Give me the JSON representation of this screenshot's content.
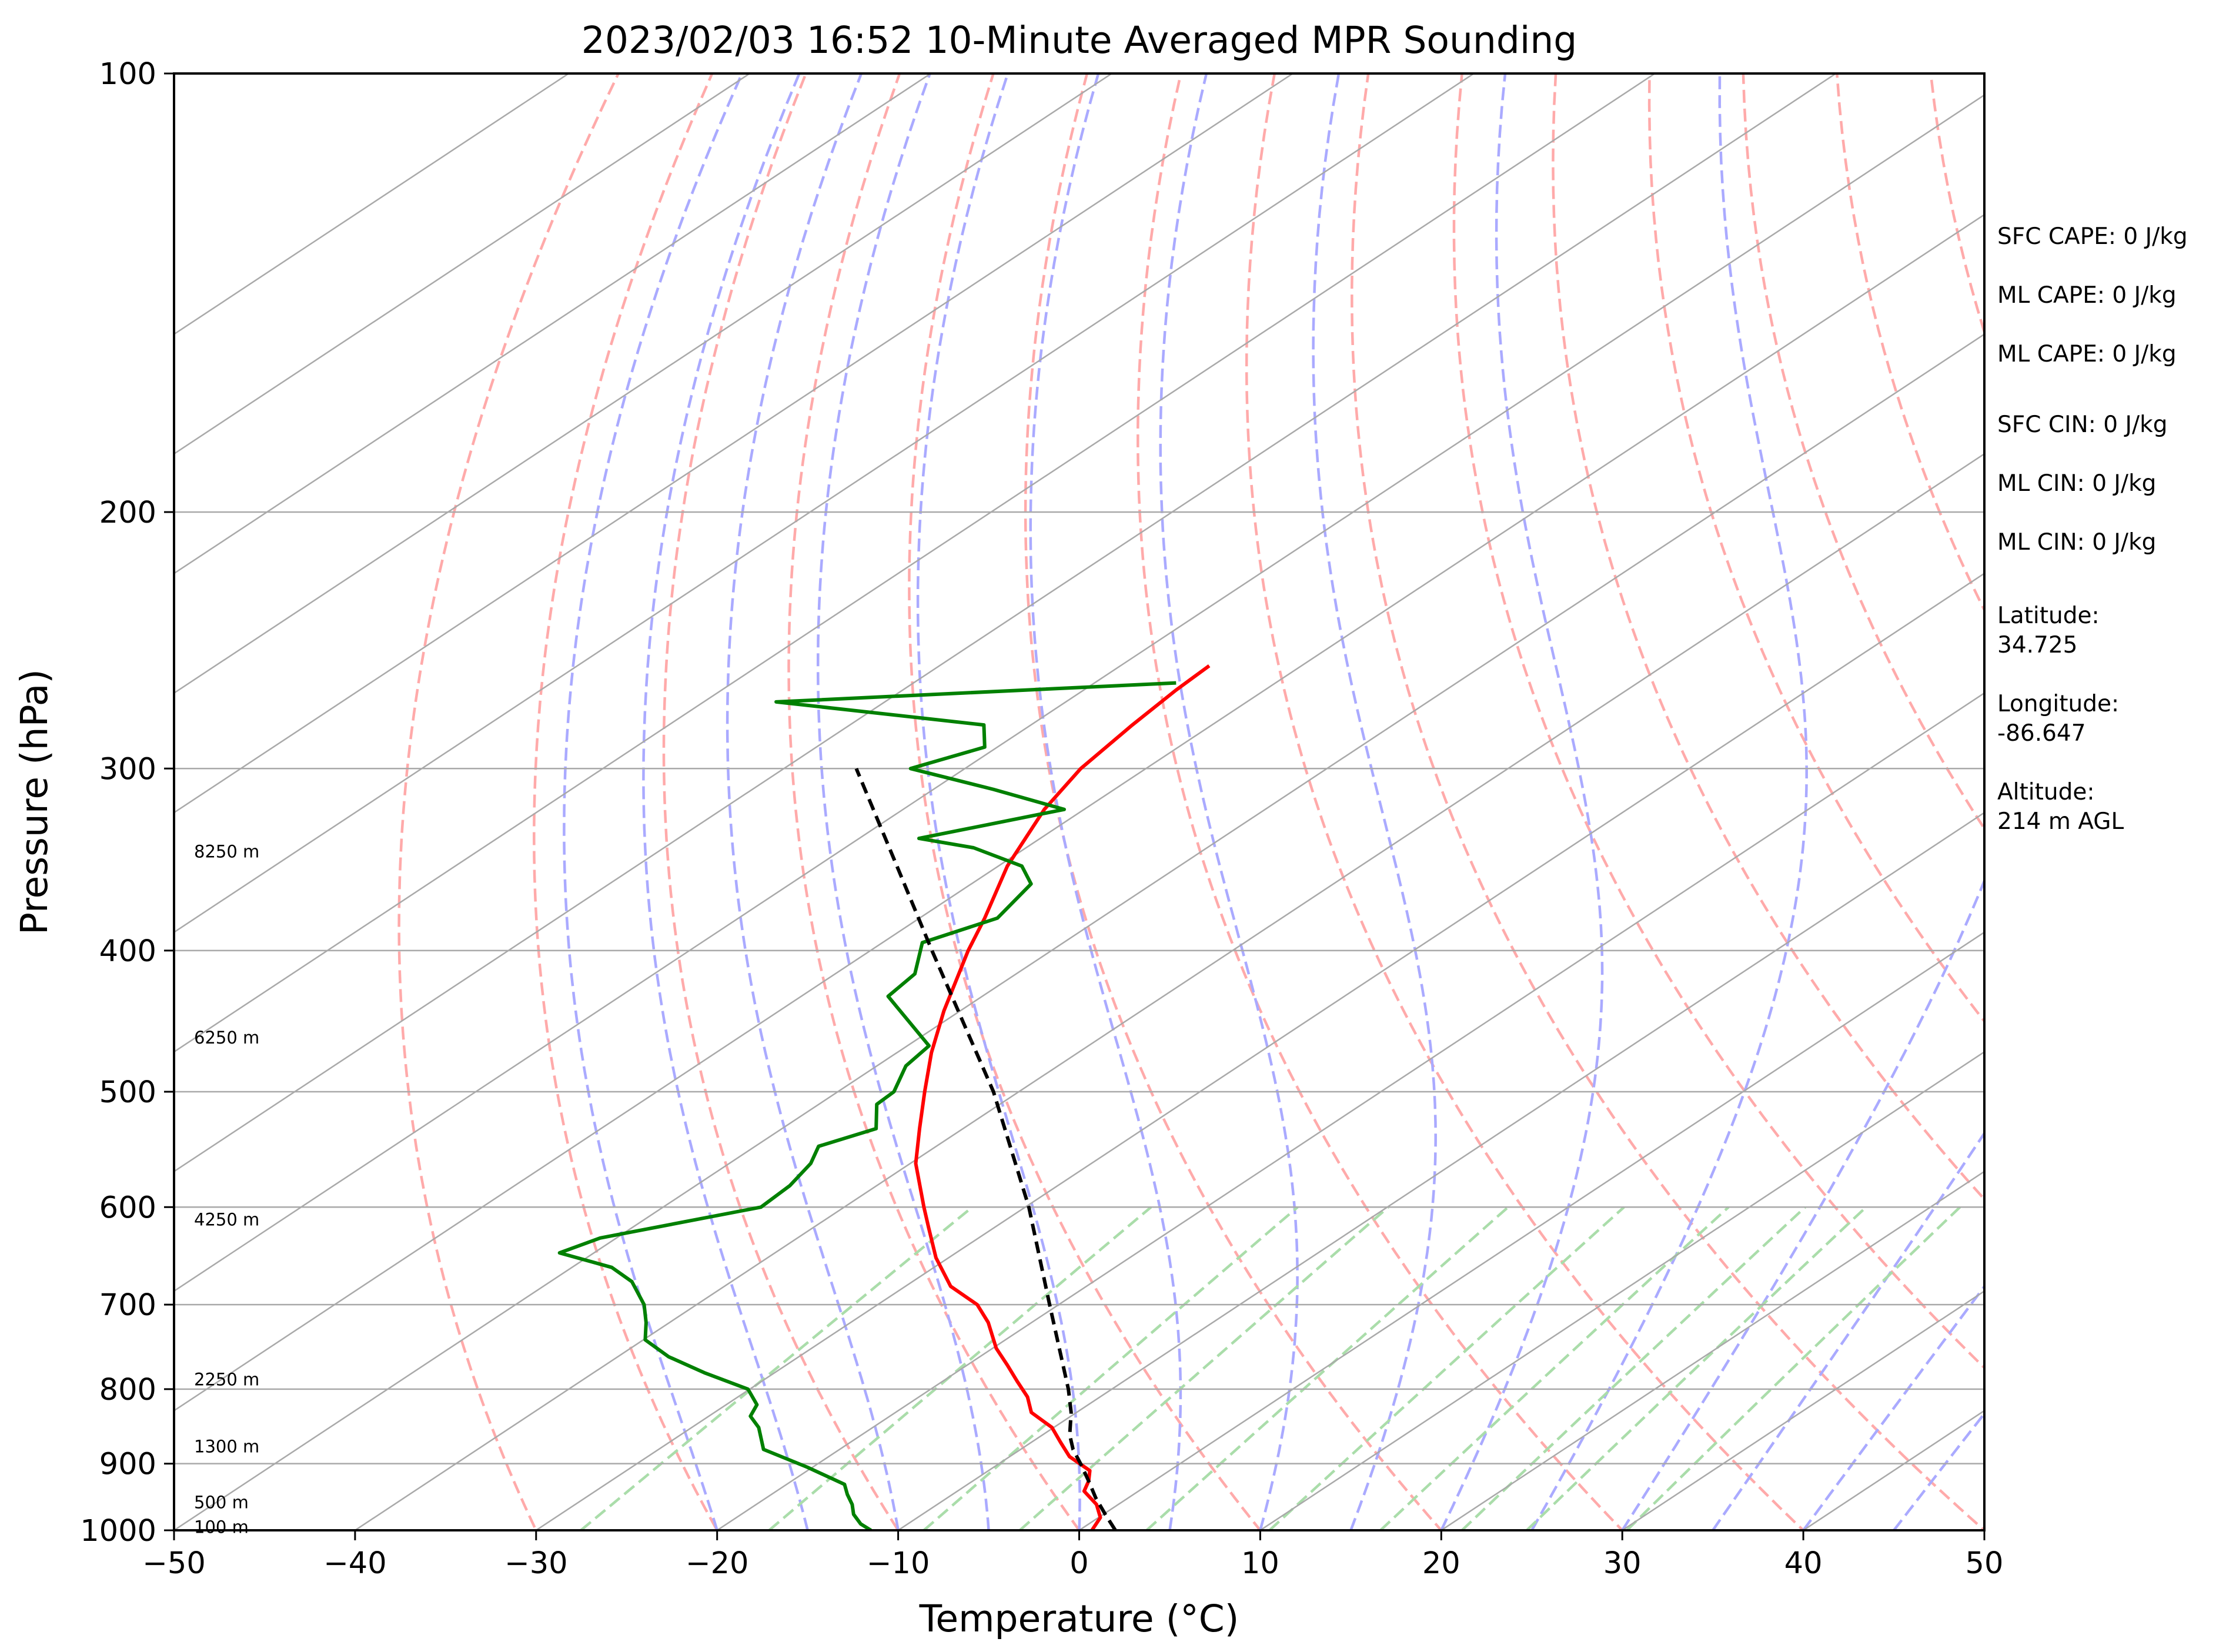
{
  "chart_data": {
    "type": "line",
    "title": "2023/02/03 16:52 10-Minute Averaged MPR Sounding",
    "xlabel": "Temperature (°C)",
    "ylabel": "Pressure (hPa)",
    "xlim": [
      -50,
      50
    ],
    "ylim": [
      1000,
      100
    ],
    "y_scale": "log",
    "x_ticks": [
      -50,
      -40,
      -30,
      -20,
      -10,
      0,
      10,
      20,
      30,
      40,
      50
    ],
    "x_tick_labels": [
      "−50",
      "−40",
      "−30",
      "−20",
      "−10",
      "0",
      "10",
      "20",
      "30",
      "40",
      "50"
    ],
    "y_ticks": [
      100,
      200,
      300,
      400,
      500,
      600,
      700,
      800,
      900,
      1000
    ],
    "y_tick_labels": [
      "100",
      "200",
      "300",
      "400",
      "500",
      "600",
      "700",
      "800",
      "900",
      "1000"
    ],
    "grid": true,
    "skew_t": true,
    "series": [
      {
        "role": "temperature",
        "color": "#ff0000",
        "pressure": [
          1000,
          980,
          960,
          940,
          925,
          910,
          890,
          870,
          850,
          830,
          810,
          790,
          770,
          750,
          720,
          700,
          680,
          650,
          620,
          600,
          560,
          530,
          500,
          470,
          440,
          400,
          380,
          350,
          320,
          300,
          280,
          265,
          255
        ],
        "temperature": [
          0.7,
          0.1,
          -1.2,
          -3.0,
          -3.6,
          -4.4,
          -6.7,
          -8.4,
          -10.1,
          -12.5,
          -14.0,
          -15.9,
          -17.8,
          -19.8,
          -22.4,
          -24.5,
          -27.5,
          -30.7,
          -33.6,
          -35.6,
          -39.7,
          -42.4,
          -45.2,
          -48.1,
          -50.9,
          -54.6,
          -56.4,
          -59.5,
          -62.2,
          -63.6,
          -64.4,
          -64.9,
          -65.1
        ]
      },
      {
        "role": "dewpoint",
        "color": "#008000",
        "pressure": [
          1000,
          990,
          975,
          960,
          945,
          930,
          905,
          880,
          850,
          835,
          820,
          800,
          780,
          760,
          740,
          720,
          700,
          675,
          660,
          645,
          630,
          600,
          580,
          560,
          545,
          530,
          510,
          500,
          480,
          465,
          430,
          415,
          395,
          380,
          360,
          350,
          340,
          335,
          320,
          310,
          300,
          290,
          280,
          270,
          262
        ],
        "temperature": [
          -11.5,
          -12.6,
          -13.8,
          -14.7,
          -15.8,
          -16.8,
          -20.3,
          -24.2,
          -26.3,
          -27.7,
          -28.3,
          -30.1,
          -33.8,
          -37.2,
          -39.9,
          -41.3,
          -42.9,
          -45.5,
          -47.8,
          -51.9,
          -50.9,
          -44.6,
          -44.8,
          -45.5,
          -46.5,
          -44.8,
          -46.8,
          -46.9,
          -48.4,
          -48.8,
          -55.2,
          -55.6,
          -57.8,
          -55.7,
          -56.7,
          -58.7,
          -62.9,
          -66.7,
          -61.1,
          -66.7,
          -73.0,
          -70.7,
          -72.6,
          -86.0,
          -65.5
        ]
      },
      {
        "role": "parcel profile",
        "color": "#000000",
        "pressure": [
          1000,
          975,
          950,
          925,
          900,
          880,
          860,
          830,
          800,
          700,
          600,
          500,
          400,
          350,
          300
        ],
        "temperature": [
          2.0,
          0.1,
          -1.8,
          -3.6,
          -5.5,
          -7.1,
          -8.5,
          -10.3,
          -12.4,
          -20.5,
          -29.8,
          -41.4,
          -56.6,
          -65.6,
          -76.0
        ]
      }
    ],
    "height_labels": [
      "100 m",
      "500 m",
      "1300 m",
      "2250 m",
      "4250 m",
      "6250 m",
      "8250 m"
    ],
    "height_label_pressures": [
      995,
      957,
      876,
      788,
      612,
      459,
      342
    ],
    "annotations": [
      "SFC CAPE: 0 J/kg",
      "ML CAPE: 0 J/kg",
      "ML CAPE: 0 J/kg",
      "SFC CIN: 0 J/kg",
      "ML CIN: 0 J/kg",
      "ML CIN: 0 J/kg",
      "Latitude:",
      "34.725",
      "Longitude:",
      "-86.647",
      "Altitude:",
      "214 m AGL"
    ],
    "colors": {
      "temperature": "#ff0000",
      "dewpoint": "#008000",
      "parcel": "#000000",
      "dry_adiabats": "#ffaaaa",
      "moist_adiabats": "#aaaaff",
      "mixing_ratio": "#aaddaa",
      "isotherms": "#a9a9a9"
    }
  }
}
